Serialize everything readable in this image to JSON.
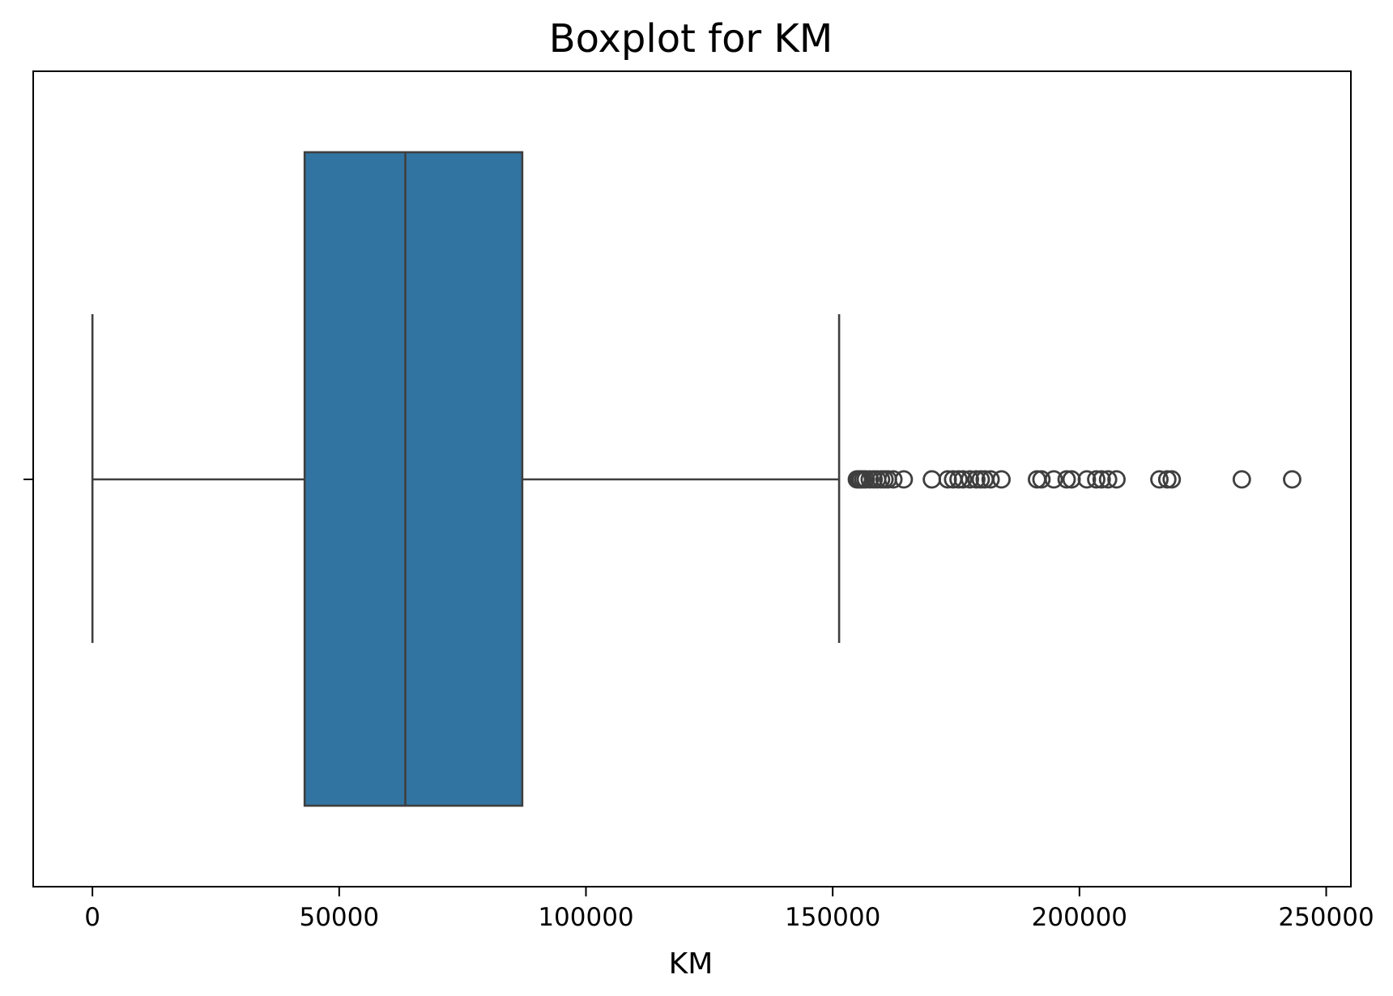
{
  "chart_data": {
    "type": "boxplot",
    "title": "Boxplot for KM",
    "xlabel": "KM",
    "ylabel": "",
    "orientation": "horizontal",
    "xlim": [
      -12000,
      255000
    ],
    "x_ticks": [
      0,
      50000,
      100000,
      150000,
      200000,
      250000
    ],
    "x_tick_labels": [
      "0",
      "50000",
      "100000",
      "150000",
      "200000",
      "250000"
    ],
    "grid": false,
    "colors": {
      "box_fill": "#3274a1",
      "lines": "#3f3f3f",
      "frame": "#000000"
    },
    "box": {
      "whisker_low": 1,
      "q1": 43000,
      "median": 63400,
      "q3": 87100,
      "whisker_high": 151300
    },
    "outliers": [
      154900,
      155300,
      155700,
      156200,
      156700,
      157500,
      158300,
      159000,
      159800,
      160500,
      161200,
      162300,
      164400,
      170100,
      173300,
      174400,
      175500,
      176400,
      177800,
      179100,
      180000,
      180800,
      182000,
      184200,
      191400,
      192300,
      194800,
      197400,
      198400,
      201500,
      203400,
      204500,
      205800,
      207500,
      216200,
      217800,
      218700,
      232900,
      243100
    ]
  }
}
